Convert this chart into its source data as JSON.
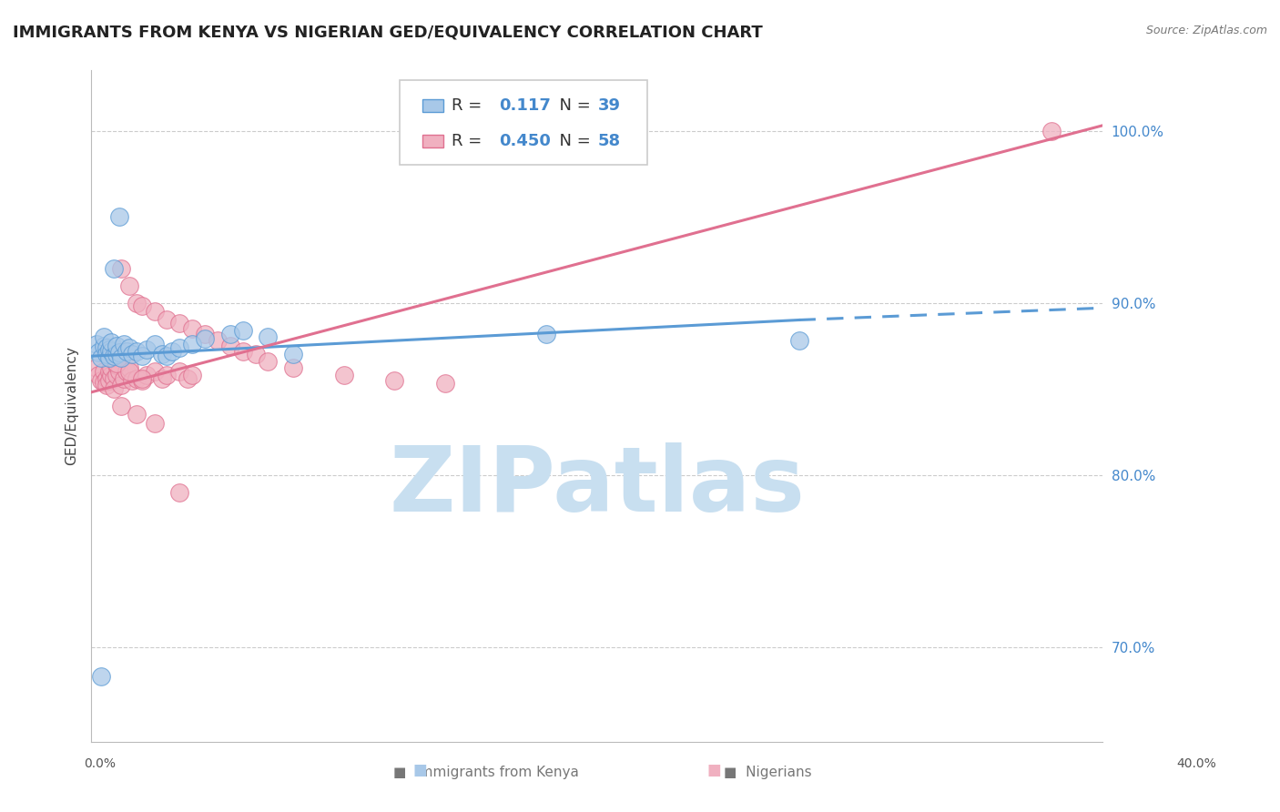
{
  "title": "IMMIGRANTS FROM KENYA VS NIGERIAN GED/EQUIVALENCY CORRELATION CHART",
  "source": "Source: ZipAtlas.com",
  "ylabel": "GED/Equivalency",
  "ytick_labels": [
    "70.0%",
    "80.0%",
    "90.0%",
    "100.0%"
  ],
  "ytick_values": [
    0.7,
    0.8,
    0.9,
    1.0
  ],
  "xlim": [
    0.0,
    0.4
  ],
  "ylim": [
    0.645,
    1.035
  ],
  "legend_r1": "R =  0.117",
  "legend_n1": "N = 39",
  "legend_r2": "R =  0.450",
  "legend_n2": "N = 58",
  "kenya_x": [
    0.002,
    0.003,
    0.004,
    0.005,
    0.005,
    0.006,
    0.006,
    0.007,
    0.007,
    0.008,
    0.008,
    0.009,
    0.01,
    0.01,
    0.011,
    0.012,
    0.013,
    0.014,
    0.015,
    0.016,
    0.018,
    0.02,
    0.022,
    0.025,
    0.028,
    0.03,
    0.032,
    0.035,
    0.04,
    0.045,
    0.055,
    0.06,
    0.07,
    0.08,
    0.18,
    0.28,
    0.009,
    0.011,
    0.004
  ],
  "kenya_y": [
    0.876,
    0.871,
    0.868,
    0.875,
    0.88,
    0.874,
    0.87,
    0.873,
    0.868,
    0.872,
    0.877,
    0.869,
    0.87,
    0.875,
    0.871,
    0.868,
    0.876,
    0.872,
    0.874,
    0.87,
    0.872,
    0.869,
    0.873,
    0.876,
    0.87,
    0.869,
    0.872,
    0.874,
    0.876,
    0.879,
    0.882,
    0.884,
    0.88,
    0.87,
    0.882,
    0.878,
    0.92,
    0.95,
    0.683
  ],
  "nigeria_x": [
    0.002,
    0.003,
    0.004,
    0.005,
    0.005,
    0.006,
    0.006,
    0.007,
    0.007,
    0.008,
    0.008,
    0.009,
    0.009,
    0.01,
    0.01,
    0.011,
    0.012,
    0.013,
    0.014,
    0.015,
    0.016,
    0.018,
    0.02,
    0.022,
    0.025,
    0.028,
    0.03,
    0.035,
    0.038,
    0.04,
    0.012,
    0.015,
    0.018,
    0.02,
    0.025,
    0.03,
    0.035,
    0.04,
    0.045,
    0.05,
    0.055,
    0.06,
    0.065,
    0.07,
    0.08,
    0.1,
    0.12,
    0.14,
    0.006,
    0.008,
    0.01,
    0.015,
    0.02,
    0.012,
    0.018,
    0.025,
    0.38,
    0.035
  ],
  "nigeria_y": [
    0.862,
    0.858,
    0.855,
    0.86,
    0.854,
    0.856,
    0.852,
    0.86,
    0.855,
    0.858,
    0.862,
    0.856,
    0.85,
    0.858,
    0.864,
    0.86,
    0.852,
    0.856,
    0.86,
    0.862,
    0.855,
    0.856,
    0.855,
    0.858,
    0.86,
    0.856,
    0.858,
    0.86,
    0.856,
    0.858,
    0.92,
    0.91,
    0.9,
    0.898,
    0.895,
    0.89,
    0.888,
    0.885,
    0.882,
    0.878,
    0.875,
    0.872,
    0.87,
    0.866,
    0.862,
    0.858,
    0.855,
    0.853,
    0.872,
    0.868,
    0.865,
    0.86,
    0.856,
    0.84,
    0.835,
    0.83,
    1.0,
    0.79
  ],
  "kenya_line": {
    "x": [
      0.0,
      0.28
    ],
    "y": [
      0.869,
      0.89
    ]
  },
  "kenya_dash": {
    "x": [
      0.28,
      0.4
    ],
    "y": [
      0.89,
      0.897
    ]
  },
  "nigeria_line": {
    "x": [
      0.0,
      0.4
    ],
    "y": [
      0.848,
      1.003
    ]
  },
  "kenya_color": "#5b9bd5",
  "kenya_fill": "#a8c8e8",
  "nigeria_color": "#e07090",
  "nigeria_fill": "#f0b0c0",
  "grid_color": "#cccccc",
  "bg_color": "#ffffff",
  "watermark": "ZIPatlas",
  "watermark_color": "#c8dff0",
  "title_color": "#222222",
  "source_color": "#777777",
  "tick_color": "#4488cc",
  "label_color": "#444444"
}
